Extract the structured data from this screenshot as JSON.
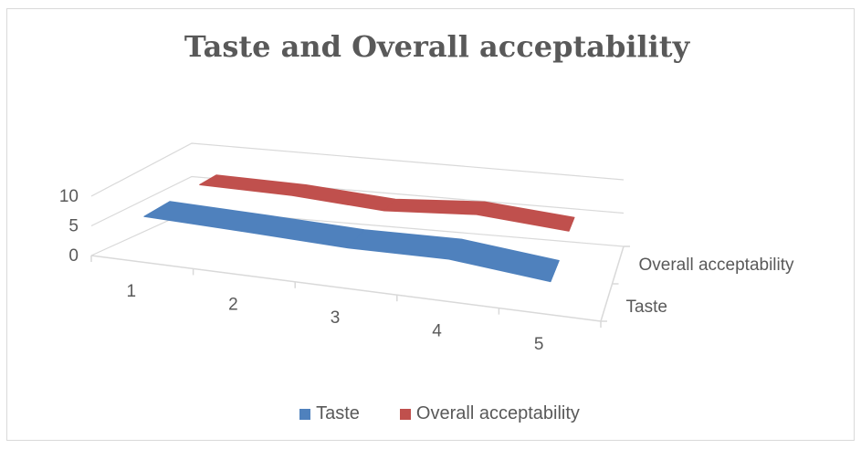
{
  "chart_data": {
    "type": "line",
    "title": "Taste and Overall acceptability",
    "categories": [
      "1",
      "2",
      "3",
      "4",
      "5"
    ],
    "depth_categories": [
      "Overall acceptability",
      "Taste"
    ],
    "yticks": [
      "0",
      "5",
      "10"
    ],
    "ylim": [
      0,
      10
    ],
    "series": [
      {
        "name": "Taste",
        "color": "#4f81bd",
        "values": [
          7.5,
          7.1,
          6.6,
          6.9,
          5.3
        ]
      },
      {
        "name": "Overall acceptability",
        "color": "#c0504d",
        "values": [
          7.4,
          7.2,
          6.3,
          7.2,
          6.1
        ]
      }
    ],
    "legend_position": "bottom",
    "grid": true,
    "projection": "3d"
  }
}
